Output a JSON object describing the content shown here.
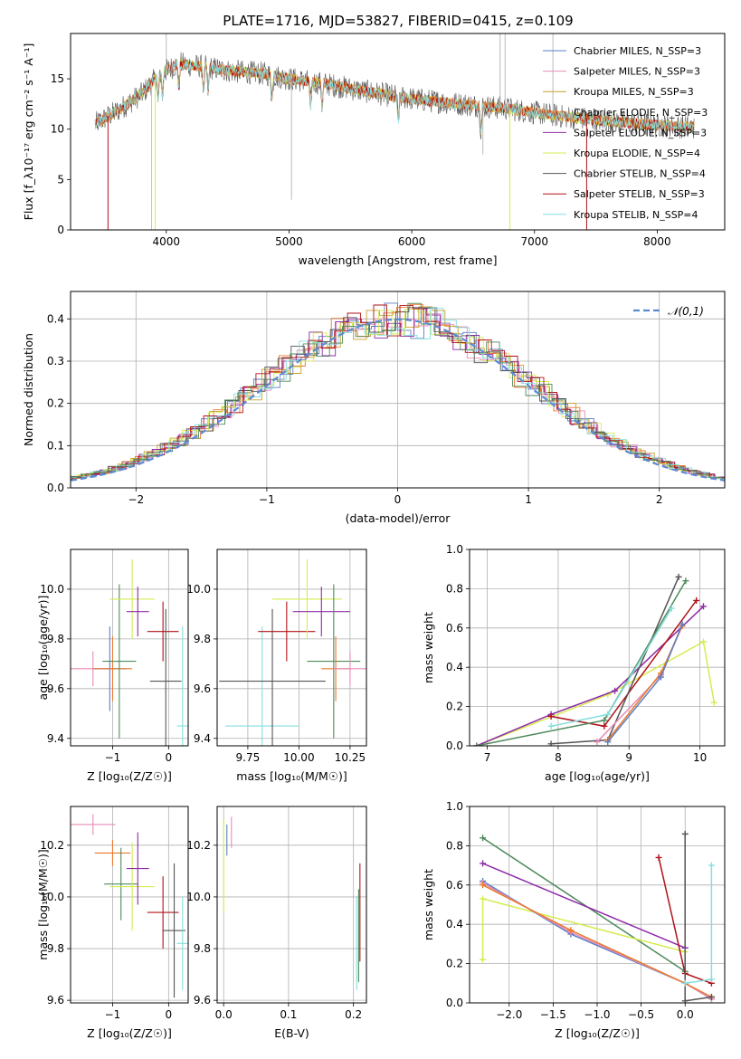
{
  "title": "PLATE=1716, MJD=53827, FIBERID=0415, z=0.109",
  "colors": {
    "Chabrier MILES": "#5b7fc4",
    "Salpeter MILES": "#e88bb8",
    "Kroupa MILES": "#c8a02a",
    "Chabrier ELODIE": "#e87a2e",
    "Salpeter ELODIE": "#8e2ba8",
    "Kroupa ELODIE": "#d6ec52",
    "Chabrier STELIB": "#555555",
    "Salpeter STELIB": "#b01218",
    "Kroupa STELIB": "#86dede",
    "Green": "#4e8a5c",
    "Gray": "#aaaaaa"
  },
  "chart_data": [
    {
      "type": "line",
      "xlabel": "wavelength [Angstrom, rest frame]",
      "ylabel": "Flux [f_λ10⁻¹⁷ erg cm⁻² s⁻¹ A⁻¹]",
      "xlim": [
        3220,
        8550
      ],
      "ylim": [
        0,
        19.5
      ],
      "xticks": [
        4000,
        5000,
        6000,
        7000,
        8000
      ],
      "yticks": [
        0,
        5,
        10,
        15
      ],
      "legend": [
        "Chabrier MILES, N_SSP=3",
        "Salpeter MILES, N_SSP=3",
        "Kroupa MILES, N_SSP=3",
        "Chabrier ELODIE, N_SSP=3",
        "Salpeter ELODIE, N_SSP=3",
        "Kroupa ELODIE, N_SSP=4",
        "Chabrier STELIB, N_SSP=4",
        "Salpeter STELIB, N_SSP=3",
        "Kroupa STELIB, N_SSP=4"
      ],
      "legend_series": [
        "Chabrier MILES",
        "Salpeter MILES",
        "Kroupa MILES",
        "Chabrier ELODIE",
        "Salpeter ELODIE",
        "Kroupa ELODIE",
        "Chabrier STELIB",
        "Salpeter STELIB",
        "Kroupa STELIB"
      ],
      "legend_position": "upper right",
      "continuum": [
        [
          3420,
          10.5
        ],
        [
          3600,
          11.8
        ],
        [
          3800,
          13.5
        ],
        [
          3950,
          15.5
        ],
        [
          4100,
          16.5
        ],
        [
          4300,
          16.2
        ],
        [
          4500,
          15.8
        ],
        [
          4800,
          15.5
        ],
        [
          5000,
          15.0
        ],
        [
          5300,
          14.5
        ],
        [
          5600,
          13.8
        ],
        [
          6000,
          13.0
        ],
        [
          6400,
          12.5
        ],
        [
          6800,
          12.0
        ],
        [
          7200,
          11.3
        ],
        [
          7600,
          10.8
        ],
        [
          8000,
          10.4
        ],
        [
          8300,
          10.2
        ]
      ]
    },
    {
      "type": "histogram",
      "xlabel": "(data-model)/error",
      "ylabel": "Normed distribution",
      "xlim": [
        -2.5,
        2.5
      ],
      "ylim": [
        0,
        0.465
      ],
      "xticks": [
        -2,
        -1,
        0,
        1,
        2
      ],
      "yticks": [
        0.0,
        0.1,
        0.2,
        0.3,
        0.4
      ],
      "grid": true,
      "legend": [
        "𝒩(0,1)"
      ],
      "legend_position": "upper right",
      "gaussian": {
        "mean": 0,
        "sigma": 1,
        "color": "#5b8ad4"
      }
    },
    {
      "type": "scatter",
      "xlabel": "Z [log₁₀(Z/Z☉)]",
      "ylabel": "age  [log₁₀(age/yr)]",
      "xlim": [
        -1.75,
        0.35
      ],
      "ylim": [
        9.37,
        10.16
      ],
      "xticks": [
        -1,
        0
      ],
      "yticks": [
        9.4,
        9.6,
        9.8,
        10.0
      ],
      "grid": true,
      "points": [
        {
          "series": "Salpeter MILES",
          "x": -1.35,
          "xerr": 0.4,
          "y": 9.68,
          "yerr": 0.07
        },
        {
          "series": "Chabrier MILES",
          "x": -1.05,
          "xerr": 0.3,
          "y": 9.68,
          "yerr": 0.17
        },
        {
          "series": "Chabrier ELODIE",
          "x": -1.0,
          "xerr": 0.35,
          "y": 9.68,
          "yerr": 0.13
        },
        {
          "series": "Green",
          "x": -0.88,
          "xerr": 0.3,
          "y": 9.71,
          "yerr": 0.31
        },
        {
          "series": "Kroupa ELODIE",
          "x": -0.65,
          "xerr": 0.4,
          "y": 9.96,
          "yerr": 0.16
        },
        {
          "series": "Salpeter ELODIE",
          "x": -0.55,
          "xerr": 0.2,
          "y": 9.91,
          "yerr": 0.1
        },
        {
          "series": "Salpeter STELIB",
          "x": -0.1,
          "xerr": 0.28,
          "y": 9.83,
          "yerr": 0.12
        },
        {
          "series": "Chabrier STELIB",
          "x": -0.05,
          "xerr": 0.28,
          "y": 9.63,
          "yerr": 0.29
        },
        {
          "series": "Kroupa STELIB",
          "x": 0.25,
          "xerr": 0.1,
          "y": 9.45,
          "yerr": 0.4
        }
      ]
    },
    {
      "type": "scatter",
      "xlabel": "mass [log₁₀(M/M☉)]",
      "ylabel": "",
      "xlim": [
        9.6,
        10.33
      ],
      "ylim": [
        9.37,
        10.16
      ],
      "xticks": [
        9.75,
        10.0,
        10.25
      ],
      "yticks": [
        9.4,
        9.6,
        9.8,
        10.0
      ],
      "grid": true,
      "points": [
        {
          "series": "Kroupa STELIB",
          "x": 9.82,
          "xerr": 0.18,
          "y": 9.45,
          "yerr": 0.4
        },
        {
          "series": "Chabrier STELIB",
          "x": 9.87,
          "xerr": 0.26,
          "y": 9.63,
          "yerr": 0.29
        },
        {
          "series": "Salpeter STELIB",
          "x": 9.94,
          "xerr": 0.14,
          "y": 9.83,
          "yerr": 0.12
        },
        {
          "series": "Kroupa ELODIE",
          "x": 10.04,
          "xerr": 0.17,
          "y": 9.96,
          "yerr": 0.16
        },
        {
          "series": "Salpeter ELODIE",
          "x": 10.11,
          "xerr": 0.14,
          "y": 9.91,
          "yerr": 0.1
        },
        {
          "series": "Green",
          "x": 10.17,
          "xerr": 0.13,
          "y": 9.71,
          "yerr": 0.31
        },
        {
          "series": "Chabrier ELODIE",
          "x": 10.18,
          "xerr": 0.07,
          "y": 9.68,
          "yerr": 0.13
        },
        {
          "series": "Salpeter MILES",
          "x": 10.25,
          "xerr": 0.08,
          "y": 9.68,
          "yerr": 0.07
        }
      ]
    },
    {
      "type": "line",
      "xlabel": "age  [log₁₀(age/yr)]",
      "ylabel": "mass weight",
      "xlim": [
        6.75,
        10.35
      ],
      "ylim": [
        0,
        1.0
      ],
      "xticks": [
        7,
        8,
        9,
        10
      ],
      "yticks": [
        0.0,
        0.2,
        0.4,
        0.6,
        0.8,
        1.0
      ],
      "grid": true,
      "series": [
        {
          "name": "Kroupa ELODIE",
          "points": [
            [
              6.85,
              0.0
            ],
            [
              8.7,
              0.26
            ],
            [
              10.05,
              0.53
            ],
            [
              10.2,
              0.22
            ]
          ]
        },
        {
          "name": "Salpeter ELODIE",
          "points": [
            [
              6.85,
              0.0
            ],
            [
              7.9,
              0.16
            ],
            [
              8.8,
              0.28
            ],
            [
              10.05,
              0.71
            ]
          ]
        },
        {
          "name": "Salpeter STELIB",
          "points": [
            [
              7.9,
              0.15
            ],
            [
              8.65,
              0.1
            ],
            [
              9.95,
              0.74
            ]
          ]
        },
        {
          "name": "Chabrier STELIB",
          "points": [
            [
              7.9,
              0.01
            ],
            [
              8.7,
              0.03
            ],
            [
              9.7,
              0.86
            ]
          ]
        },
        {
          "name": "Green",
          "points": [
            [
              6.85,
              0.0
            ],
            [
              8.65,
              0.13
            ],
            [
              9.8,
              0.84
            ]
          ]
        },
        {
          "name": "Kroupa STELIB",
          "points": [
            [
              7.9,
              0.1
            ],
            [
              8.7,
              0.16
            ],
            [
              9.6,
              0.7
            ]
          ]
        },
        {
          "name": "Salpeter MILES",
          "points": [
            [
              8.55,
              0.02
            ],
            [
              9.45,
              0.36
            ],
            [
              9.75,
              0.61
            ]
          ]
        },
        {
          "name": "Chabrier ELODIE",
          "points": [
            [
              8.7,
              0.03
            ],
            [
              9.45,
              0.37
            ],
            [
              9.75,
              0.61
            ]
          ]
        },
        {
          "name": "Chabrier MILES",
          "points": [
            [
              8.7,
              0.02
            ],
            [
              9.45,
              0.35
            ],
            [
              9.75,
              0.62
            ]
          ]
        }
      ]
    },
    {
      "type": "scatter",
      "xlabel": "Z [log₁₀(Z/Z☉)]",
      "ylabel": "mass [log₁₀(M/M☉)]",
      "xlim": [
        -1.75,
        0.35
      ],
      "ylim": [
        9.59,
        10.35
      ],
      "xticks": [
        -1,
        0
      ],
      "yticks": [
        9.6,
        9.8,
        10.0,
        10.2
      ],
      "grid": true,
      "points": [
        {
          "series": "Salpeter MILES",
          "x": -1.35,
          "xerr": 0.4,
          "y": 10.28,
          "yerr": 0.04
        },
        {
          "series": "Chabrier ELODIE",
          "x": -1.0,
          "xerr": 0.32,
          "y": 10.17,
          "yerr": 0.05
        },
        {
          "series": "Green",
          "x": -0.85,
          "xerr": 0.3,
          "y": 10.05,
          "yerr": 0.14
        },
        {
          "series": "Kroupa ELODIE",
          "x": -0.65,
          "xerr": 0.4,
          "y": 10.04,
          "yerr": 0.17
        },
        {
          "series": "Salpeter ELODIE",
          "x": -0.55,
          "xerr": 0.2,
          "y": 10.11,
          "yerr": 0.14
        },
        {
          "series": "Salpeter STELIB",
          "x": -0.1,
          "xerr": 0.28,
          "y": 9.94,
          "yerr": 0.14
        },
        {
          "series": "Chabrier STELIB",
          "x": 0.1,
          "xerr": 0.2,
          "y": 9.87,
          "yerr": 0.26
        },
        {
          "series": "Kroupa STELIB",
          "x": 0.25,
          "xerr": 0.1,
          "y": 9.82,
          "yerr": 0.18
        }
      ]
    },
    {
      "type": "scatter",
      "xlabel": "E(B-V)",
      "ylabel": "",
      "xlim": [
        -0.01,
        0.22
      ],
      "ylim": [
        9.59,
        10.35
      ],
      "xticks": [
        0.0,
        0.1,
        0.2
      ],
      "yticks": [
        9.6,
        9.8,
        10.0,
        10.2
      ],
      "grid": true,
      "points": [
        {
          "series": "Salpeter MILES",
          "x": 0.012,
          "xerr": 0,
          "y": 10.25,
          "yerr": 0.06
        },
        {
          "series": "Kroupa ELODIE",
          "x": 0.0,
          "xerr": 0,
          "y": 10.12,
          "yerr": 0.18
        },
        {
          "series": "Chabrier MILES",
          "x": 0.005,
          "xerr": 0,
          "y": 10.22,
          "yerr": 0.06
        },
        {
          "series": "Salpeter STELIB",
          "x": 0.21,
          "xerr": 0,
          "y": 9.94,
          "yerr": 0.19
        },
        {
          "series": "Kroupa STELIB",
          "x": 0.205,
          "xerr": 0,
          "y": 9.82,
          "yerr": 0.18
        },
        {
          "series": "Green",
          "x": 0.208,
          "xerr": 0,
          "y": 9.85,
          "yerr": 0.18
        }
      ]
    },
    {
      "type": "line",
      "xlabel": "Z [log₁₀(Z/Z☉)]",
      "ylabel": "mass weight",
      "xlim": [
        -2.45,
        0.45
      ],
      "ylim": [
        0,
        1.0
      ],
      "xticks": [
        -2.0,
        -1.5,
        -1.0,
        -0.5,
        0.0
      ],
      "yticks": [
        0.0,
        0.2,
        0.4,
        0.6,
        0.8,
        1.0
      ],
      "grid": true,
      "series": [
        {
          "name": "Green",
          "points": [
            [
              -2.3,
              0.84
            ],
            [
              0.0,
              0.16
            ]
          ]
        },
        {
          "name": "Salpeter ELODIE",
          "points": [
            [
              -2.3,
              0.71
            ],
            [
              0.0,
              0.28
            ]
          ]
        },
        {
          "name": "Kroupa ELODIE",
          "points": [
            [
              -2.3,
              0.22
            ],
            [
              -2.3,
              0.53
            ],
            [
              0.0,
              0.26
            ]
          ]
        },
        {
          "name": "Chabrier MILES",
          "points": [
            [
              -2.3,
              0.62
            ],
            [
              -1.3,
              0.35
            ],
            [
              0.0,
              0.1
            ],
            [
              0.3,
              0.02
            ]
          ]
        },
        {
          "name": "Salpeter MILES",
          "points": [
            [
              -2.3,
              0.61
            ],
            [
              -1.3,
              0.36
            ],
            [
              0.0,
              0.1
            ],
            [
              0.3,
              0.02
            ]
          ]
        },
        {
          "name": "Chabrier ELODIE",
          "points": [
            [
              -2.3,
              0.6
            ],
            [
              -1.3,
              0.37
            ],
            [
              0.0,
              0.1
            ],
            [
              0.3,
              0.03
            ]
          ]
        },
        {
          "name": "Salpeter STELIB",
          "points": [
            [
              -0.3,
              0.74
            ],
            [
              0.0,
              0.15
            ],
            [
              0.3,
              0.1
            ]
          ]
        },
        {
          "name": "Chabrier STELIB",
          "points": [
            [
              0.0,
              0.86
            ],
            [
              0.0,
              0.01
            ],
            [
              0.3,
              0.03
            ]
          ]
        },
        {
          "name": "Kroupa STELIB",
          "points": [
            [
              0.0,
              0.1
            ],
            [
              0.3,
              0.12
            ],
            [
              0.3,
              0.7
            ]
          ]
        }
      ]
    }
  ]
}
